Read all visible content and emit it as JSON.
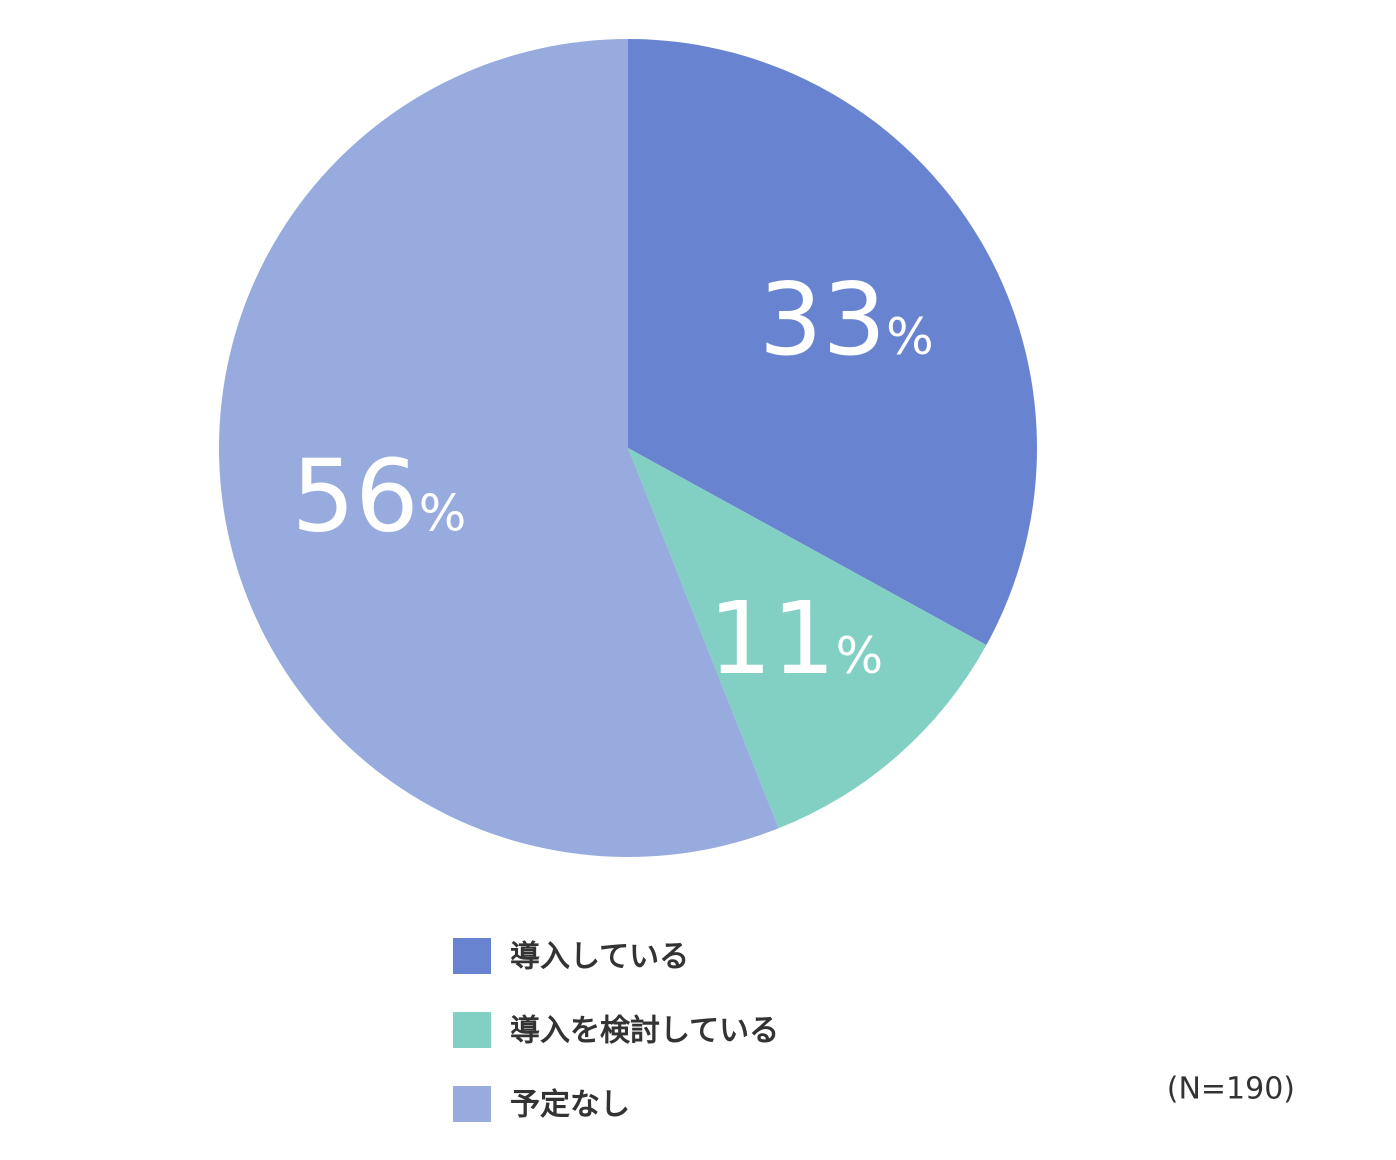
{
  "chart_data": {
    "type": "pie",
    "categories": [
      "導入している",
      "導入を検討している",
      "予定なし"
    ],
    "values": [
      33,
      11,
      56
    ],
    "value_labels": [
      "33%",
      "11%",
      "56%"
    ],
    "colors": [
      "#6884d0",
      "#82d0c4",
      "#97abdf"
    ],
    "note": "(N=190)"
  }
}
